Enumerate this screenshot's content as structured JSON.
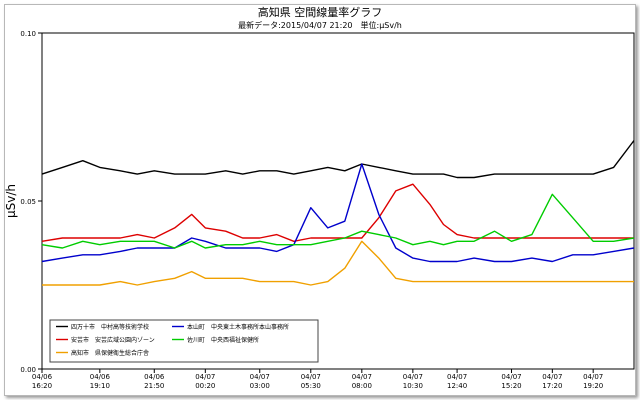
{
  "chart_data": {
    "type": "line",
    "title": "高知県 空間線量率グラフ",
    "subtitle": "最新データ:2015/04/07 21:20　単位:μSv/h",
    "ylabel": "μSv/h",
    "ylim": [
      0,
      0.1
    ],
    "y_ticks": [
      "0.00",
      "0.05",
      "0.10"
    ],
    "grid": false,
    "legend_position": "bottom-left",
    "x_ticks": [
      {
        "date": "04/06",
        "time": "16:20"
      },
      {
        "date": "04/06",
        "time": "19:10"
      },
      {
        "date": "04/06",
        "time": "21:50"
      },
      {
        "date": "04/07",
        "time": "00:20"
      },
      {
        "date": "04/07",
        "time": "03:00"
      },
      {
        "date": "04/07",
        "time": "05:30"
      },
      {
        "date": "04/07",
        "time": "08:00"
      },
      {
        "date": "04/07",
        "time": "10:30"
      },
      {
        "date": "04/07",
        "time": "12:40"
      },
      {
        "date": "04/07",
        "time": "15:20"
      },
      {
        "date": "04/07",
        "time": "17:20"
      },
      {
        "date": "04/07",
        "time": "19:20"
      }
    ],
    "x": [
      "04/06 16:20",
      "04/06 17:20",
      "04/06 18:20",
      "04/06 19:10",
      "04/06 20:10",
      "04/06 21:00",
      "04/06 21:50",
      "04/06 22:50",
      "04/06 23:40",
      "04/07 00:20",
      "04/07 01:20",
      "04/07 02:10",
      "04/07 03:00",
      "04/07 03:50",
      "04/07 04:40",
      "04/07 05:30",
      "04/07 06:20",
      "04/07 07:10",
      "04/07 08:00",
      "04/07 08:50",
      "04/07 09:40",
      "04/07 10:30",
      "04/07 11:20",
      "04/07 12:00",
      "04/07 12:40",
      "04/07 13:30",
      "04/07 14:30",
      "04/07 15:20",
      "04/07 16:20",
      "04/07 17:20",
      "04/07 18:20",
      "04/07 19:20",
      "04/07 20:20",
      "04/07 21:20"
    ],
    "series": [
      {
        "name": "四万十市　中村高等技術学校",
        "color": "#000000",
        "values": [
          0.058,
          0.06,
          0.062,
          0.06,
          0.059,
          0.058,
          0.059,
          0.058,
          0.058,
          0.058,
          0.059,
          0.058,
          0.059,
          0.059,
          0.058,
          0.059,
          0.06,
          0.059,
          0.061,
          0.06,
          0.059,
          0.058,
          0.058,
          0.058,
          0.057,
          0.057,
          0.058,
          0.058,
          0.058,
          0.058,
          0.058,
          0.058,
          0.06,
          0.068
        ]
      },
      {
        "name": "安芸市　安芸広域公園内ゾーン",
        "color": "#dd0000",
        "values": [
          0.038,
          0.039,
          0.039,
          0.039,
          0.039,
          0.04,
          0.039,
          0.042,
          0.046,
          0.042,
          0.041,
          0.039,
          0.039,
          0.04,
          0.038,
          0.039,
          0.039,
          0.039,
          0.039,
          0.045,
          0.053,
          0.055,
          0.049,
          0.043,
          0.04,
          0.039,
          0.039,
          0.039,
          0.039,
          0.039,
          0.039,
          0.039,
          0.039,
          0.039
        ]
      },
      {
        "name": "高知市　県保健衛生総合庁舎",
        "color": "#f0a000",
        "values": [
          0.025,
          0.025,
          0.025,
          0.025,
          0.026,
          0.025,
          0.026,
          0.027,
          0.029,
          0.027,
          0.027,
          0.027,
          0.026,
          0.026,
          0.026,
          0.025,
          0.026,
          0.03,
          0.038,
          0.033,
          0.027,
          0.026,
          0.026,
          0.026,
          0.026,
          0.026,
          0.026,
          0.026,
          0.026,
          0.026,
          0.026,
          0.026,
          0.026,
          0.026
        ]
      },
      {
        "name": "本山町　中央東土木事務所本山事務所",
        "color": "#0000cc",
        "values": [
          0.032,
          0.033,
          0.034,
          0.034,
          0.035,
          0.036,
          0.036,
          0.036,
          0.039,
          0.038,
          0.036,
          0.036,
          0.036,
          0.035,
          0.037,
          0.048,
          0.042,
          0.044,
          0.061,
          0.046,
          0.036,
          0.033,
          0.032,
          0.032,
          0.032,
          0.033,
          0.032,
          0.032,
          0.033,
          0.032,
          0.034,
          0.034,
          0.035,
          0.036
        ]
      },
      {
        "name": "佐川町　中央西福祉保健所",
        "color": "#00cc00",
        "values": [
          0.037,
          0.036,
          0.038,
          0.037,
          0.038,
          0.038,
          0.038,
          0.036,
          0.038,
          0.036,
          0.037,
          0.037,
          0.038,
          0.037,
          0.037,
          0.037,
          0.038,
          0.039,
          0.041,
          0.04,
          0.039,
          0.037,
          0.038,
          0.037,
          0.038,
          0.038,
          0.041,
          0.038,
          0.04,
          0.052,
          0.045,
          0.038,
          0.038,
          0.039
        ]
      }
    ]
  }
}
